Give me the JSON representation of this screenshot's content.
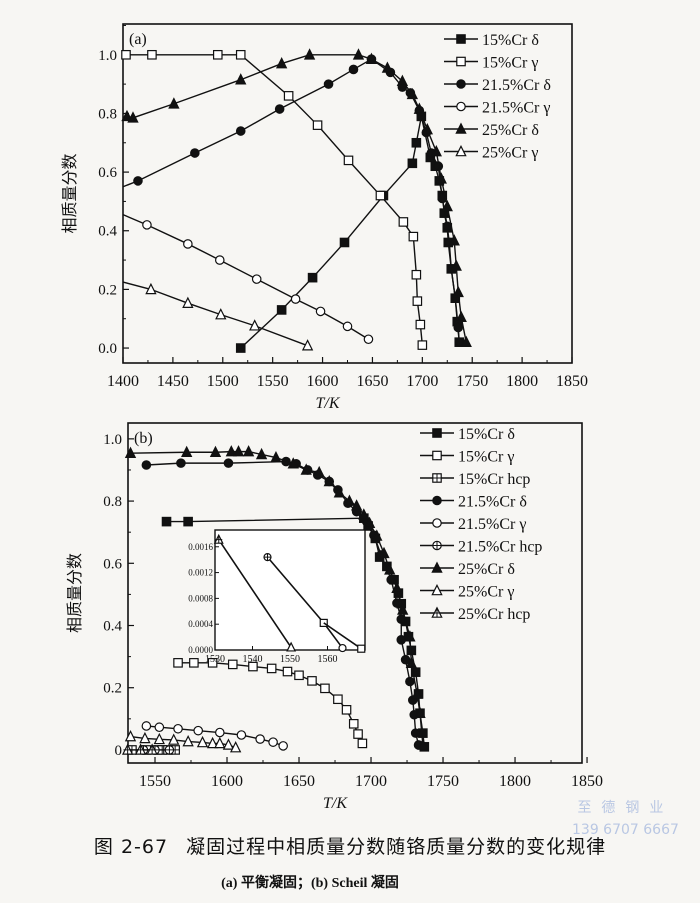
{
  "chart_data": [
    {
      "type": "line",
      "panel_label": "(a)",
      "xlabel": "T/K",
      "ylabel": "相质量分数",
      "xlim": [
        1400,
        1850
      ],
      "ylim": [
        -0.051,
        1.105
      ],
      "xticks": [
        1400,
        1450,
        1500,
        1550,
        1600,
        1650,
        1700,
        1750,
        1800,
        1850
      ],
      "xtick_labels": [
        "1400",
        "1450",
        "1500",
        "1550",
        "1600",
        "1650",
        "1700",
        "1750",
        "1800",
        "1850"
      ],
      "yticks": [
        0,
        0.2,
        0.4,
        0.6,
        0.8,
        1.0
      ],
      "ytick_labels": [
        "0.0",
        "0.2",
        "0.4",
        "0.6",
        "0.8",
        "1.0"
      ],
      "legend_position": "top-right",
      "series": [
        {
          "name": "15%Cr δ",
          "marker": "square-filled",
          "points": [
            [
              1518,
              0.0
            ],
            [
              1559,
              0.13
            ],
            [
              1590,
              0.24
            ],
            [
              1622,
              0.36
            ],
            [
              1661,
              0.52
            ],
            [
              1690,
              0.63
            ],
            [
              1694,
              0.7
            ],
            [
              1699,
              0.79
            ],
            [
              1708,
              0.65
            ],
            [
              1713,
              0.62
            ],
            [
              1717,
              0.57
            ],
            [
              1720,
              0.52
            ],
            [
              1722,
              0.46
            ],
            [
              1725,
              0.41
            ],
            [
              1726,
              0.36
            ],
            [
              1729,
              0.27
            ],
            [
              1733,
              0.17
            ],
            [
              1735,
              0.09
            ],
            [
              1737,
              0.02
            ]
          ]
        },
        {
          "name": "15%Cr γ",
          "marker": "square-open",
          "points": [
            [
              1403,
              1.0
            ],
            [
              1429,
              1.0
            ],
            [
              1495,
              1.0
            ],
            [
              1518,
              1.0
            ],
            [
              1566,
              0.86
            ],
            [
              1595,
              0.76
            ],
            [
              1626,
              0.64
            ],
            [
              1658,
              0.52
            ],
            [
              1681,
              0.43
            ],
            [
              1691,
              0.38
            ],
            [
              1694,
              0.25
            ],
            [
              1695,
              0.16
            ],
            [
              1698,
              0.08
            ],
            [
              1700,
              0.01
            ]
          ]
        },
        {
          "name": "21.5%Cr δ",
          "marker": "circle-filled",
          "line_start": [
            1400,
            0.55
          ],
          "points": [
            [
              1415,
              0.57
            ],
            [
              1472,
              0.665
            ],
            [
              1518,
              0.74
            ],
            [
              1557,
              0.815
            ],
            [
              1606,
              0.9
            ],
            [
              1631,
              0.95
            ],
            [
              1649,
              0.985
            ],
            [
              1668,
              0.94
            ],
            [
              1680,
              0.89
            ],
            [
              1688,
              0.87
            ],
            [
              1697,
              0.81
            ],
            [
              1704,
              0.735
            ],
            [
              1709,
              0.665
            ],
            [
              1716,
              0.62
            ],
            [
              1720,
              0.51
            ],
            [
              1725,
              0.415
            ],
            [
              1727,
              0.36
            ],
            [
              1729,
              0.27
            ],
            [
              1733,
              0.17
            ],
            [
              1736,
              0.07
            ],
            [
              1737,
              0.02
            ]
          ]
        },
        {
          "name": "21.5%Cr γ",
          "marker": "circle-open",
          "line_start": [
            1400,
            0.455
          ],
          "points": [
            [
              1424,
              0.42
            ],
            [
              1465,
              0.355
            ],
            [
              1497,
              0.3
            ],
            [
              1534,
              0.235
            ],
            [
              1573,
              0.167
            ],
            [
              1598,
              0.125
            ],
            [
              1625,
              0.074
            ],
            [
              1646,
              0.03
            ]
          ]
        },
        {
          "name": "25%Cr δ",
          "marker": "triangle-filled",
          "points": [
            [
              1404,
              0.79
            ],
            [
              1410,
              0.785
            ],
            [
              1451,
              0.833
            ],
            [
              1518,
              0.915
            ],
            [
              1559,
              0.97
            ],
            [
              1587,
              1.0
            ],
            [
              1636,
              1.0
            ],
            [
              1649,
              0.985
            ],
            [
              1665,
              0.955
            ],
            [
              1680,
              0.91
            ],
            [
              1690,
              0.865
            ],
            [
              1697,
              0.815
            ],
            [
              1705,
              0.745
            ],
            [
              1714,
              0.67
            ],
            [
              1719,
              0.577
            ],
            [
              1725,
              0.483
            ],
            [
              1732,
              0.366
            ],
            [
              1734,
              0.28
            ],
            [
              1736,
              0.19
            ],
            [
              1739,
              0.105
            ],
            [
              1744,
              0.02
            ]
          ]
        },
        {
          "name": "25%Cr γ",
          "marker": "triangle-open",
          "line_start": [
            1400,
            0.225
          ],
          "points": [
            [
              1428,
              0.2
            ],
            [
              1465,
              0.153
            ],
            [
              1498,
              0.114
            ],
            [
              1532,
              0.076
            ],
            [
              1585,
              0.008
            ]
          ]
        }
      ]
    },
    {
      "type": "line",
      "panel_label": "(b)",
      "xlabel": "T/K",
      "ylabel": "相质量分数",
      "xlim": [
        1531.25,
        1846.5
      ],
      "ylim": [
        -0.042,
        1.051
      ],
      "xticks": [
        1550,
        1600,
        1650,
        1700,
        1750,
        1800,
        1850
      ],
      "xtick_labels": [
        "1550",
        "1600",
        "1650",
        "1700",
        "1750",
        "1800",
        "1850"
      ],
      "yticks": [
        0,
        0.2,
        0.4,
        0.6,
        0.8,
        1.0
      ],
      "ytick_labels": [
        "0",
        "0.2",
        "0.4",
        "0.6",
        "0.8",
        "1.0"
      ],
      "legend_position": "top-right",
      "series": [
        {
          "name": "15%Cr δ",
          "marker": "square-filled",
          "points": [
            [
              1558,
              0.734
            ],
            [
              1573,
              0.734
            ],
            [
              1695,
              0.745
            ],
            [
              1698,
              0.72
            ],
            [
              1703,
              0.68
            ],
            [
              1706,
              0.62
            ],
            [
              1711,
              0.59
            ],
            [
              1716,
              0.547
            ],
            [
              1719,
              0.504
            ],
            [
              1721,
              0.47
            ],
            [
              1724,
              0.413
            ],
            [
              1726,
              0.364
            ],
            [
              1728,
              0.32
            ],
            [
              1731,
              0.25
            ],
            [
              1733,
              0.18
            ],
            [
              1734,
              0.118
            ],
            [
              1736,
              0.054
            ],
            [
              1737,
              0.01
            ]
          ],
          "marker_indices": [
            0,
            1,
            2,
            3,
            4,
            5,
            6,
            7,
            8,
            9,
            10,
            11,
            12,
            13,
            14,
            15,
            16,
            17
          ]
        },
        {
          "name": "15%Cr γ",
          "marker": "square-open",
          "points": [
            [
              1566,
              0.28
            ],
            [
              1577,
              0.28
            ],
            [
              1590,
              0.28
            ],
            [
              1604,
              0.275
            ],
            [
              1618,
              0.268
            ],
            [
              1631,
              0.262
            ],
            [
              1642,
              0.252
            ],
            [
              1650,
              0.24
            ],
            [
              1659,
              0.222
            ],
            [
              1668,
              0.198
            ],
            [
              1677,
              0.163
            ],
            [
              1683,
              0.129
            ],
            [
              1688,
              0.084
            ],
            [
              1691,
              0.051
            ],
            [
              1694,
              0.021
            ]
          ]
        },
        {
          "name": "15%Cr hcp",
          "marker": "square-plus",
          "points": [
            [
              1534,
              0.0
            ],
            [
              1544,
              0.0
            ],
            [
              1552,
              0.0
            ],
            [
              1555,
              0.0
            ],
            [
              1559,
              0.0
            ],
            [
              1564,
              0.0
            ]
          ]
        },
        {
          "name": "21.5%Cr δ",
          "marker": "circle-filled",
          "points": [
            [
              1544,
              0.916
            ],
            [
              1568,
              0.922
            ],
            [
              1601,
              0.922
            ],
            [
              1641,
              0.927
            ],
            [
              1648,
              0.92
            ],
            [
              1656,
              0.9
            ],
            [
              1663,
              0.884
            ],
            [
              1671,
              0.863
            ],
            [
              1677,
              0.836
            ],
            [
              1684,
              0.793
            ],
            [
              1690,
              0.766
            ],
            [
              1697,
              0.734
            ],
            [
              1702,
              0.69
            ],
            [
              1707,
              0.627
            ],
            [
              1714,
              0.547
            ],
            [
              1718,
              0.472
            ],
            [
              1721,
              0.42
            ],
            [
              1721,
              0.354
            ],
            [
              1724,
              0.29
            ],
            [
              1727,
              0.22
            ],
            [
              1729,
              0.16
            ],
            [
              1730,
              0.113
            ],
            [
              1731,
              0.054
            ],
            [
              1733,
              0.016
            ]
          ]
        },
        {
          "name": "21.5%Cr γ",
          "marker": "circle-open",
          "points": [
            [
              1544,
              0.077
            ],
            [
              1553,
              0.073
            ],
            [
              1566,
              0.068
            ],
            [
              1580,
              0.062
            ],
            [
              1595,
              0.056
            ],
            [
              1610,
              0.048
            ],
            [
              1623,
              0.035
            ],
            [
              1632,
              0.025
            ],
            [
              1639,
              0.013
            ]
          ]
        },
        {
          "name": "21.5%Cr hcp",
          "marker": "circle-plus",
          "points": [
            [
              1542,
              0.0
            ],
            [
              1550,
              0.0
            ],
            [
              1560,
              0.0
            ]
          ]
        },
        {
          "name": "25%Cr δ",
          "marker": "triangle-filled",
          "points": [
            [
              1533,
              0.954
            ],
            [
              1572,
              0.957
            ],
            [
              1592,
              0.957
            ],
            [
              1603,
              0.959
            ],
            [
              1608,
              0.959
            ],
            [
              1615,
              0.959
            ],
            [
              1624,
              0.95
            ],
            [
              1634,
              0.94
            ],
            [
              1646,
              0.92
            ],
            [
              1655,
              0.9
            ],
            [
              1664,
              0.892
            ],
            [
              1671,
              0.863
            ],
            [
              1678,
              0.827
            ],
            [
              1685,
              0.8
            ],
            [
              1690,
              0.785
            ],
            [
              1695,
              0.756
            ],
            [
              1699,
              0.729
            ],
            [
              1704,
              0.688
            ],
            [
              1709,
              0.632
            ],
            [
              1713,
              0.579
            ],
            [
              1718,
              0.52
            ],
            [
              1722,
              0.45
            ],
            [
              1727,
              0.364
            ],
            [
              1728,
              0.279
            ],
            [
              1732,
              0.18
            ],
            [
              1734,
              0.118
            ],
            [
              1736,
              0.016
            ]
          ]
        },
        {
          "name": "25%Cr γ",
          "marker": "triangle-open",
          "points": [
            [
              1533,
              0.043
            ],
            [
              1543,
              0.037
            ],
            [
              1553,
              0.034
            ],
            [
              1563,
              0.032
            ],
            [
              1573,
              0.027
            ],
            [
              1583,
              0.024
            ],
            [
              1590,
              0.021
            ],
            [
              1595,
              0.021
            ],
            [
              1601,
              0.016
            ],
            [
              1606,
              0.0075
            ]
          ]
        },
        {
          "name": "25%Cr hcp",
          "marker": "triangle-plus",
          "points": [
            [
              1531,
              0.0
            ],
            [
              1540,
              0.0
            ],
            [
              1548,
              0.0
            ]
          ]
        }
      ],
      "inset": {
        "xlim": [
          1530,
          1570
        ],
        "ylim": [
          0,
          0.00186
        ],
        "xticks": [
          1530,
          1540,
          1550,
          1560
        ],
        "xtick_labels": [
          "1530",
          "1540",
          "1550",
          "1560"
        ],
        "yticks": [
          0,
          0.0004,
          0.0008,
          0.0012,
          0.0016
        ],
        "ytick_labels": [
          "0.0000",
          "0.0004",
          "0.0008",
          "0.0012",
          "0.0016"
        ],
        "series": [
          {
            "name": "25%Cr hcp",
            "markers": [
              "triangle-plus",
              "triangle-open"
            ],
            "points": [
              [
                1531,
                0.00171
              ],
              [
                1550.3,
                4e-05
              ]
            ]
          },
          {
            "name": "21.5%Cr hcp",
            "markers": [
              "circle-plus",
              "square-open",
              "circle-open"
            ],
            "points": [
              [
                1544,
                0.00144
              ],
              [
                1559,
                0.00042
              ],
              [
                1564,
                3e-05
              ]
            ]
          },
          {
            "name": "15%Cr hcp",
            "markers": [
              "none",
              "square-open"
            ],
            "points": [
              [
                1559,
                0.00042
              ],
              [
                1569,
                2e-05
              ]
            ]
          }
        ]
      }
    }
  ],
  "caption": {
    "figure_number": "图 2-67",
    "title": "凝固过程中相质量分数随铬质量分数的变化规律",
    "subtitle": "(a) 平衡凝固；(b) Scheil 凝固"
  },
  "watermark": {
    "name": "至德钢业",
    "phone": "139 6707 6667"
  }
}
